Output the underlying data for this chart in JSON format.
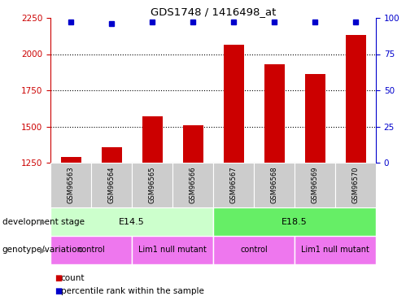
{
  "title": "GDS1748 / 1416498_at",
  "samples": [
    "GSM96563",
    "GSM96564",
    "GSM96565",
    "GSM96566",
    "GSM96567",
    "GSM96568",
    "GSM96569",
    "GSM96570"
  ],
  "bar_values": [
    1290,
    1355,
    1570,
    1510,
    2065,
    1930,
    1860,
    2130
  ],
  "percentile_values": [
    97,
    96,
    97,
    97,
    97,
    97,
    97,
    97
  ],
  "bar_color": "#cc0000",
  "dot_color": "#0000cc",
  "ylim_left": [
    1250,
    2250
  ],
  "ylim_right": [
    0,
    100
  ],
  "yticks_left": [
    1250,
    1500,
    1750,
    2000,
    2250
  ],
  "yticks_right": [
    0,
    25,
    50,
    75,
    100
  ],
  "development_stage_labels": [
    "E14.5",
    "E18.5"
  ],
  "development_stage_ranges": [
    [
      0,
      4
    ],
    [
      4,
      8
    ]
  ],
  "development_stage_colors": [
    "#ccffcc",
    "#66ee66"
  ],
  "genotype_labels": [
    "control",
    "Lim1 null mutant",
    "control",
    "Lim1 null mutant"
  ],
  "genotype_ranges": [
    [
      0,
      2
    ],
    [
      2,
      4
    ],
    [
      4,
      6
    ],
    [
      6,
      8
    ]
  ],
  "genotype_color": "#ee77ee",
  "sample_bg_color": "#cccccc",
  "legend_count_color": "#cc0000",
  "legend_dot_color": "#0000cc",
  "left_axis_color": "#cc0000",
  "right_axis_color": "#0000cc",
  "dotted_yticks": [
    1500,
    1750,
    2000
  ],
  "bar_bottom": 1250,
  "bar_width": 0.5
}
